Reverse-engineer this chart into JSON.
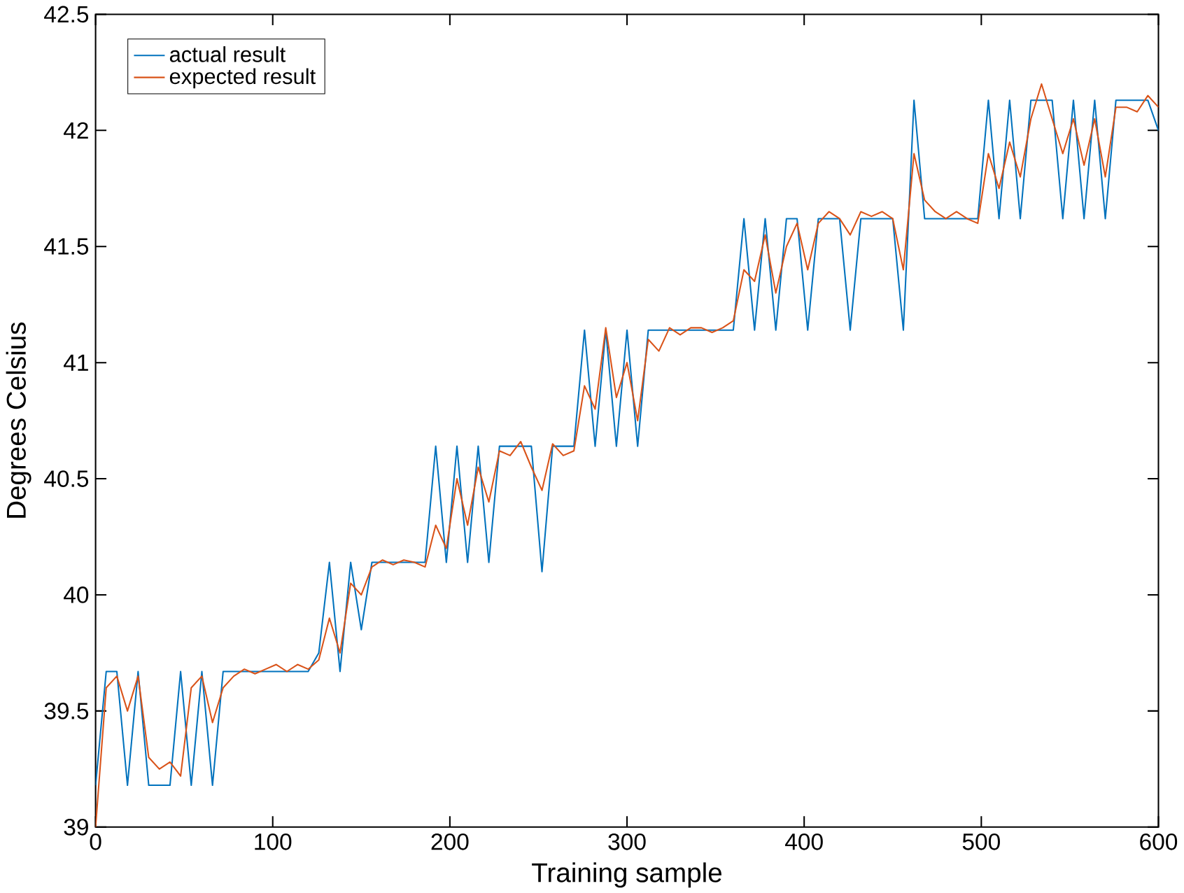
{
  "chart_data": {
    "type": "line",
    "xlabel": "Training sample",
    "ylabel": "Degrees Celsius",
    "x": [
      0,
      6,
      12,
      18,
      24,
      30,
      36,
      42,
      48,
      54,
      60,
      66,
      72,
      78,
      84,
      90,
      96,
      102,
      108,
      114,
      120,
      126,
      132,
      138,
      144,
      150,
      156,
      162,
      168,
      174,
      180,
      186,
      192,
      198,
      204,
      210,
      216,
      222,
      228,
      234,
      240,
      246,
      252,
      258,
      264,
      270,
      276,
      282,
      288,
      294,
      300,
      306,
      312,
      318,
      324,
      330,
      336,
      342,
      348,
      354,
      360,
      366,
      372,
      378,
      384,
      390,
      396,
      402,
      408,
      414,
      420,
      426,
      432,
      438,
      444,
      450,
      456,
      462,
      468,
      474,
      480,
      486,
      492,
      498,
      504,
      510,
      516,
      522,
      528,
      534,
      540,
      546,
      552,
      558,
      564,
      570,
      576,
      582,
      588,
      594,
      600
    ],
    "series": [
      {
        "name": "actual result",
        "color": "#0072bd",
        "values": [
          39.18,
          39.67,
          39.67,
          39.18,
          39.67,
          39.18,
          39.18,
          39.18,
          39.67,
          39.18,
          39.67,
          39.18,
          39.67,
          39.67,
          39.67,
          39.67,
          39.67,
          39.67,
          39.67,
          39.67,
          39.67,
          39.75,
          40.14,
          39.67,
          40.14,
          39.85,
          40.14,
          40.14,
          40.14,
          40.14,
          40.14,
          40.14,
          40.64,
          40.14,
          40.64,
          40.14,
          40.64,
          40.14,
          40.64,
          40.64,
          40.64,
          40.64,
          40.1,
          40.64,
          40.64,
          40.64,
          41.14,
          40.64,
          41.14,
          40.64,
          41.14,
          40.64,
          41.14,
          41.14,
          41.14,
          41.14,
          41.14,
          41.14,
          41.14,
          41.14,
          41.14,
          41.62,
          41.14,
          41.62,
          41.14,
          41.62,
          41.62,
          41.14,
          41.62,
          41.62,
          41.62,
          41.14,
          41.62,
          41.62,
          41.62,
          41.62,
          41.14,
          42.13,
          41.62,
          41.62,
          41.62,
          41.62,
          41.62,
          41.62,
          42.13,
          41.62,
          42.13,
          41.62,
          42.13,
          42.13,
          42.13,
          41.62,
          42.13,
          41.62,
          42.13,
          41.62,
          42.13,
          42.13,
          42.13,
          42.13,
          42.0
        ]
      },
      {
        "name": "expected result",
        "color": "#d95319",
        "values": [
          39.0,
          39.6,
          39.65,
          39.5,
          39.65,
          39.3,
          39.25,
          39.28,
          39.22,
          39.6,
          39.65,
          39.45,
          39.6,
          39.65,
          39.68,
          39.66,
          39.68,
          39.7,
          39.67,
          39.7,
          39.68,
          39.72,
          39.9,
          39.75,
          40.05,
          40.0,
          40.12,
          40.15,
          40.13,
          40.15,
          40.14,
          40.12,
          40.3,
          40.2,
          40.5,
          40.3,
          40.55,
          40.4,
          40.62,
          40.6,
          40.66,
          40.55,
          40.45,
          40.65,
          40.6,
          40.62,
          40.9,
          40.8,
          41.15,
          40.85,
          41.0,
          40.75,
          41.1,
          41.05,
          41.15,
          41.12,
          41.15,
          41.15,
          41.13,
          41.15,
          41.18,
          41.4,
          41.35,
          41.55,
          41.3,
          41.5,
          41.6,
          41.4,
          41.6,
          41.65,
          41.62,
          41.55,
          41.65,
          41.63,
          41.65,
          41.62,
          41.4,
          41.9,
          41.7,
          41.65,
          41.62,
          41.65,
          41.62,
          41.6,
          41.9,
          41.75,
          41.95,
          41.8,
          42.05,
          42.2,
          42.05,
          41.9,
          42.05,
          41.85,
          42.05,
          41.8,
          42.1,
          42.1,
          42.08,
          42.15,
          42.1
        ]
      }
    ],
    "xlim": [
      0,
      600
    ],
    "ylim": [
      39,
      42.5
    ],
    "xticks": [
      0,
      100,
      200,
      300,
      400,
      500,
      600
    ],
    "yticks": [
      39,
      39.5,
      40,
      40.5,
      41,
      41.5,
      42,
      42.5
    ],
    "legend": "top left",
    "grid": false,
    "marker": "none",
    "line_style": "solid"
  }
}
